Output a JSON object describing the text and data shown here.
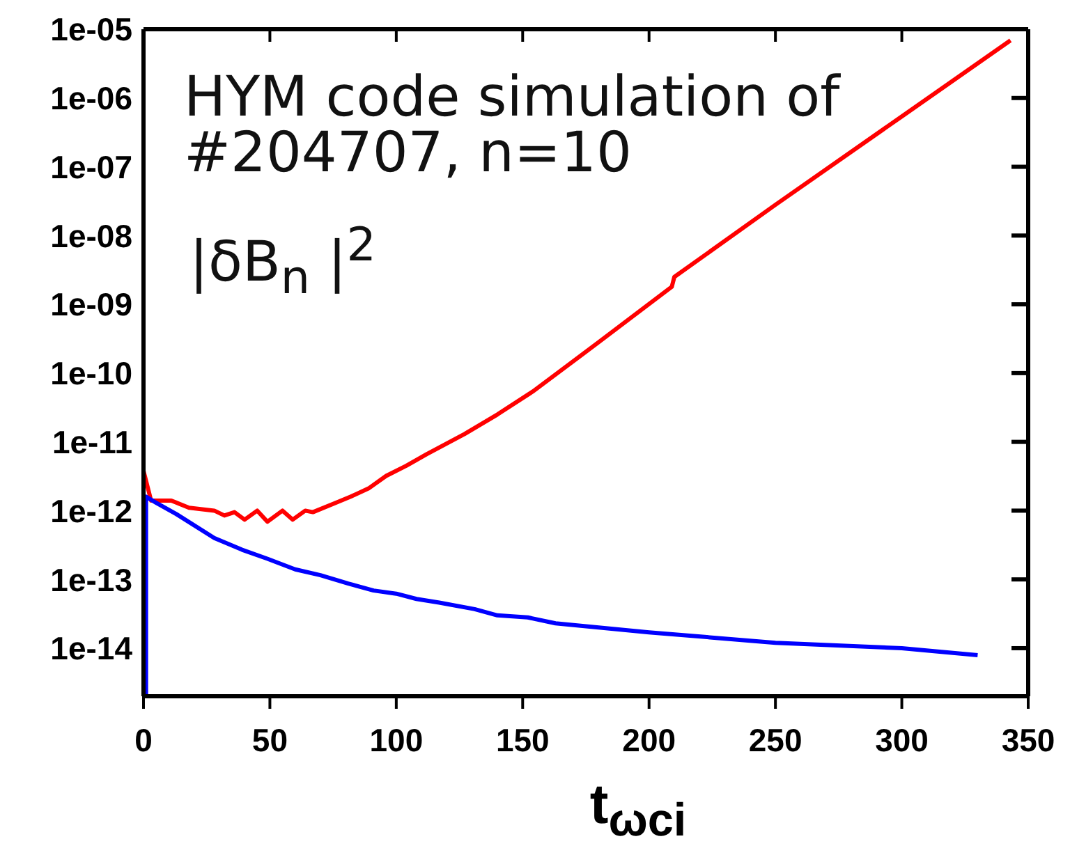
{
  "chart_data": {
    "type": "line",
    "xlabel": "t$_{ωci}$",
    "log": "y",
    "marker": "none",
    "line_style": "solid",
    "annotations": [
      "HYM code simulation of\n#204707, n=10",
      "|δB$_{n}$ |$^{2}$"
    ],
    "xlim": [
      0,
      350
    ],
    "xticks": [
      0,
      50,
      100,
      150,
      200,
      250,
      300,
      350
    ],
    "ylim": [
      2e-15,
      1e-05
    ],
    "yticks": [
      {
        "value": 1e-14,
        "label": "1e-14"
      },
      {
        "value": 1e-13,
        "label": "1e-13"
      },
      {
        "value": 1e-12,
        "label": "1e-12"
      },
      {
        "value": 1e-11,
        "label": "1e-11"
      },
      {
        "value": 1e-10,
        "label": "1e-10"
      },
      {
        "value": 1e-09,
        "label": "1e-09"
      },
      {
        "value": 1e-08,
        "label": "1e-08"
      },
      {
        "value": 1e-07,
        "label": "1e-07"
      },
      {
        "value": 1e-06,
        "label": "1e-06"
      },
      {
        "value": 1e-05,
        "label": "1e-05"
      }
    ],
    "series": [
      {
        "color": "#ff0000",
        "x": [
          0,
          3,
          11,
          18,
          28,
          32,
          36,
          40,
          45,
          49,
          55,
          59,
          64,
          67,
          76,
          82,
          89,
          96,
          104,
          112,
          127,
          140,
          154,
          180,
          209,
          210,
          250,
          300,
          343
        ],
        "values": [
          3.8e-12,
          1.4e-12,
          1.4e-12,
          1.1e-12,
          1e-12,
          8.5e-13,
          9.5e-13,
          7.4e-13,
          1e-12,
          6.9e-13,
          1e-12,
          7.4e-13,
          1e-12,
          9.5e-13,
          1.3e-12,
          1.6e-12,
          2.1e-12,
          3.2e-12,
          4.5e-12,
          6.6e-12,
          1.3e-11,
          2.5e-11,
          5.4e-11,
          2.8e-10,
          1.8e-09,
          2.5e-09,
          2.8e-08,
          5.4e-07,
          6.9e-06
        ]
      },
      {
        "color": "#0000ff",
        "x": [
          1,
          1,
          5,
          13,
          28,
          39,
          49,
          60,
          70,
          81,
          91,
          100,
          108,
          117,
          131,
          140,
          152,
          163,
          200,
          250,
          300,
          330
        ],
        "values": [
          2e-15,
          1.6e-12,
          1.3e-12,
          8.9e-13,
          4e-13,
          2.7e-13,
          2e-13,
          1.4e-13,
          1.15e-13,
          8.7e-14,
          6.9e-14,
          6.2e-14,
          5.2e-14,
          4.6e-14,
          3.7e-14,
          3e-14,
          2.8e-14,
          2.3e-14,
          1.7e-14,
          1.2e-14,
          1e-14,
          7.9e-15
        ]
      }
    ]
  }
}
